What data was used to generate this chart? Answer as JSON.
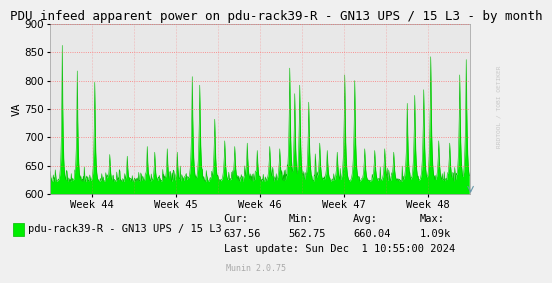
{
  "title": "PDU infeed apparent power on pdu-rack39-R - GN13 UPS / 15 L3 - by month",
  "ylabel": "VA",
  "background_color": "#F0F0F0",
  "plot_bg_color": "#E8E8E8",
  "grid_color": "#FF6666",
  "fill_color": "#00EE00",
  "line_color": "#00BB00",
  "ylim": [
    600,
    900
  ],
  "yticks": [
    600,
    650,
    700,
    750,
    800,
    850,
    900
  ],
  "xtick_labels": [
    "Week 44",
    "Week 45",
    "Week 46",
    "Week 47",
    "Week 48"
  ],
  "legend_label": "pdu-rack39-R - GN13 UPS / 15 L3",
  "cur": "637.56",
  "min_val": "562.75",
  "avg": "660.04",
  "max_val": "1.09k",
  "last_update": "Last update: Sun Dec  1 10:55:00 2024",
  "munin_version": "Munin 2.0.75",
  "watermark": "RRDTOOL / TOBI OETIKER",
  "title_fontsize": 9,
  "axis_label_fontsize": 8,
  "tick_fontsize": 7.5,
  "legend_fontsize": 7.5,
  "stats_fontsize": 7.5,
  "n_points": 840,
  "base": 622,
  "week_positions": [
    0,
    168,
    336,
    504,
    672,
    840
  ]
}
